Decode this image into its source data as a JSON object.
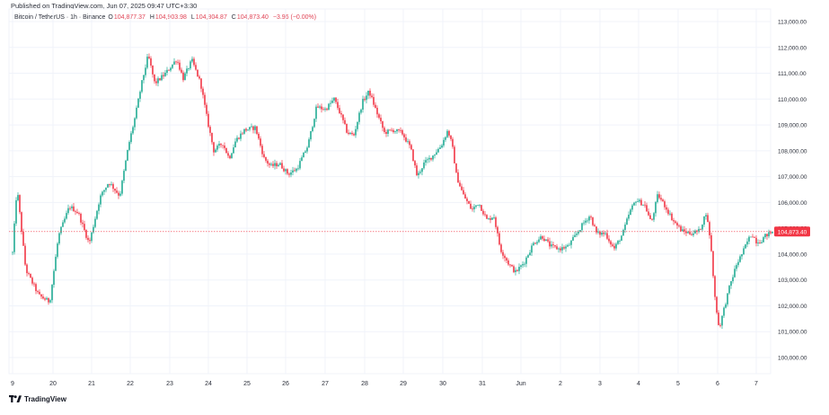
{
  "header": {
    "published": "Published on TradingView.com, Jun 07, 2025 09:47 UTC+3:30",
    "symbol": "Bitcoin / TetherUS · 1h · Binance",
    "open_label": "O",
    "open": "104,877.37",
    "high_label": "H",
    "high": "104,903.98",
    "low_label": "L",
    "low": "104,804.87",
    "close_label": "C",
    "close": "104,873.40",
    "change": "−3.96 (−0.00%)"
  },
  "footer": {
    "brand": "TradingView",
    "logo_icon": "tradingview-logo-icon"
  },
  "chart_data": {
    "type": "candlestick",
    "price_labels": [
      "113,000.00",
      "112,000.00",
      "111,000.00",
      "110,000.00",
      "109,000.00",
      "108,000.00",
      "107,000.00",
      "106,000.00",
      "105,000.00",
      "104,000.00",
      "103,000.00",
      "102,000.00",
      "101,000.00",
      "100,000.00"
    ],
    "price_levels": [
      113000,
      112000,
      111000,
      110000,
      109000,
      108000,
      107000,
      106000,
      105000,
      104000,
      103000,
      102000,
      101000,
      100000
    ],
    "x_ticks": [
      "9",
      "20",
      "21",
      "22",
      "23",
      "24",
      "25",
      "26",
      "27",
      "28",
      "29",
      "30",
      "31",
      "Jun",
      "2",
      "3",
      "4",
      "5",
      "6",
      "7"
    ],
    "ylim": [
      99500,
      113300
    ],
    "last_price": 104873.4,
    "last_price_label": "104,873.40",
    "path_points": [
      {
        "t": 9.0,
        "p": 104050
      },
      {
        "t": 9.1,
        "p": 106600
      },
      {
        "t": 9.3,
        "p": 103400
      },
      {
        "t": 9.6,
        "p": 102400
      },
      {
        "t": 9.85,
        "p": 102150
      },
      {
        "t": 10.05,
        "p": 104700
      },
      {
        "t": 10.3,
        "p": 105850
      },
      {
        "t": 10.5,
        "p": 105600
      },
      {
        "t": 10.75,
        "p": 104400
      },
      {
        "t": 11.0,
        "p": 106200
      },
      {
        "t": 11.2,
        "p": 106800
      },
      {
        "t": 11.45,
        "p": 106250
      },
      {
        "t": 11.65,
        "p": 108200
      },
      {
        "t": 11.8,
        "p": 109300
      },
      {
        "t": 11.95,
        "p": 110600
      },
      {
        "t": 12.1,
        "p": 111700
      },
      {
        "t": 12.25,
        "p": 110600
      },
      {
        "t": 12.5,
        "p": 111000
      },
      {
        "t": 12.75,
        "p": 111550
      },
      {
        "t": 12.9,
        "p": 110800
      },
      {
        "t": 13.1,
        "p": 111500
      },
      {
        "t": 13.3,
        "p": 110600
      },
      {
        "t": 13.45,
        "p": 109200
      },
      {
        "t": 13.6,
        "p": 108000
      },
      {
        "t": 13.8,
        "p": 108300
      },
      {
        "t": 13.95,
        "p": 107700
      },
      {
        "t": 14.1,
        "p": 108400
      },
      {
        "t": 14.3,
        "p": 108800
      },
      {
        "t": 14.55,
        "p": 108900
      },
      {
        "t": 14.75,
        "p": 107700
      },
      {
        "t": 14.9,
        "p": 107400
      },
      {
        "t": 15.1,
        "p": 107500
      },
      {
        "t": 15.3,
        "p": 107100
      },
      {
        "t": 15.5,
        "p": 107300
      },
      {
        "t": 15.75,
        "p": 108200
      },
      {
        "t": 15.95,
        "p": 109700
      },
      {
        "t": 16.15,
        "p": 109600
      },
      {
        "t": 16.35,
        "p": 110000
      },
      {
        "t": 16.5,
        "p": 109400
      },
      {
        "t": 16.65,
        "p": 108700
      },
      {
        "t": 16.8,
        "p": 108600
      },
      {
        "t": 17.0,
        "p": 109900
      },
      {
        "t": 17.15,
        "p": 110300
      },
      {
        "t": 17.3,
        "p": 109600
      },
      {
        "t": 17.5,
        "p": 108700
      },
      {
        "t": 17.7,
        "p": 108800
      },
      {
        "t": 17.9,
        "p": 108700
      },
      {
        "t": 18.1,
        "p": 108100
      },
      {
        "t": 18.25,
        "p": 107000
      },
      {
        "t": 18.4,
        "p": 107500
      },
      {
        "t": 18.6,
        "p": 107800
      },
      {
        "t": 18.8,
        "p": 108200
      },
      {
        "t": 18.95,
        "p": 108800
      },
      {
        "t": 19.05,
        "p": 108200
      },
      {
        "t": 19.15,
        "p": 107000
      },
      {
        "t": 19.3,
        "p": 106300
      },
      {
        "t": 19.5,
        "p": 105700
      },
      {
        "t": 19.65,
        "p": 106000
      },
      {
        "t": 19.85,
        "p": 105300
      },
      {
        "t": 20.0,
        "p": 105500
      },
      {
        "t": 20.15,
        "p": 104200
      },
      {
        "t": 20.35,
        "p": 103600
      },
      {
        "t": 20.5,
        "p": 103300
      },
      {
        "t": 20.7,
        "p": 103700
      },
      {
        "t": 20.9,
        "p": 104400
      },
      {
        "t": 21.1,
        "p": 104700
      },
      {
        "t": 21.3,
        "p": 104300
      },
      {
        "t": 21.5,
        "p": 104200
      },
      {
        "t": 21.7,
        "p": 104300
      },
      {
        "t": 21.9,
        "p": 104800
      },
      {
        "t": 22.05,
        "p": 105200
      },
      {
        "t": 22.2,
        "p": 105500
      },
      {
        "t": 22.35,
        "p": 104800
      },
      {
        "t": 22.55,
        "p": 104800
      },
      {
        "t": 22.75,
        "p": 104200
      },
      {
        "t": 22.95,
        "p": 104800
      },
      {
        "t": 23.1,
        "p": 105600
      },
      {
        "t": 23.25,
        "p": 106100
      },
      {
        "t": 23.45,
        "p": 105900
      },
      {
        "t": 23.6,
        "p": 105200
      },
      {
        "t": 23.75,
        "p": 106300
      },
      {
        "t": 23.9,
        "p": 105900
      },
      {
        "t": 24.1,
        "p": 105300
      },
      {
        "t": 24.3,
        "p": 104900
      },
      {
        "t": 24.5,
        "p": 104800
      },
      {
        "t": 24.7,
        "p": 104900
      },
      {
        "t": 24.85,
        "p": 105600
      },
      {
        "t": 24.95,
        "p": 104600
      },
      {
        "t": 25.05,
        "p": 102400
      },
      {
        "t": 25.15,
        "p": 101100
      },
      {
        "t": 25.25,
        "p": 101800
      },
      {
        "t": 25.4,
        "p": 102800
      },
      {
        "t": 25.55,
        "p": 103600
      },
      {
        "t": 25.7,
        "p": 104100
      },
      {
        "t": 25.8,
        "p": 104500
      },
      {
        "t": 25.9,
        "p": 104800
      },
      {
        "t": 26.0,
        "p": 104500
      },
      {
        "t": 26.1,
        "p": 104500
      },
      {
        "t": 26.2,
        "p": 104700
      },
      {
        "t": 26.35,
        "p": 104850
      },
      {
        "t": 26.4,
        "p": 104873
      }
    ]
  }
}
